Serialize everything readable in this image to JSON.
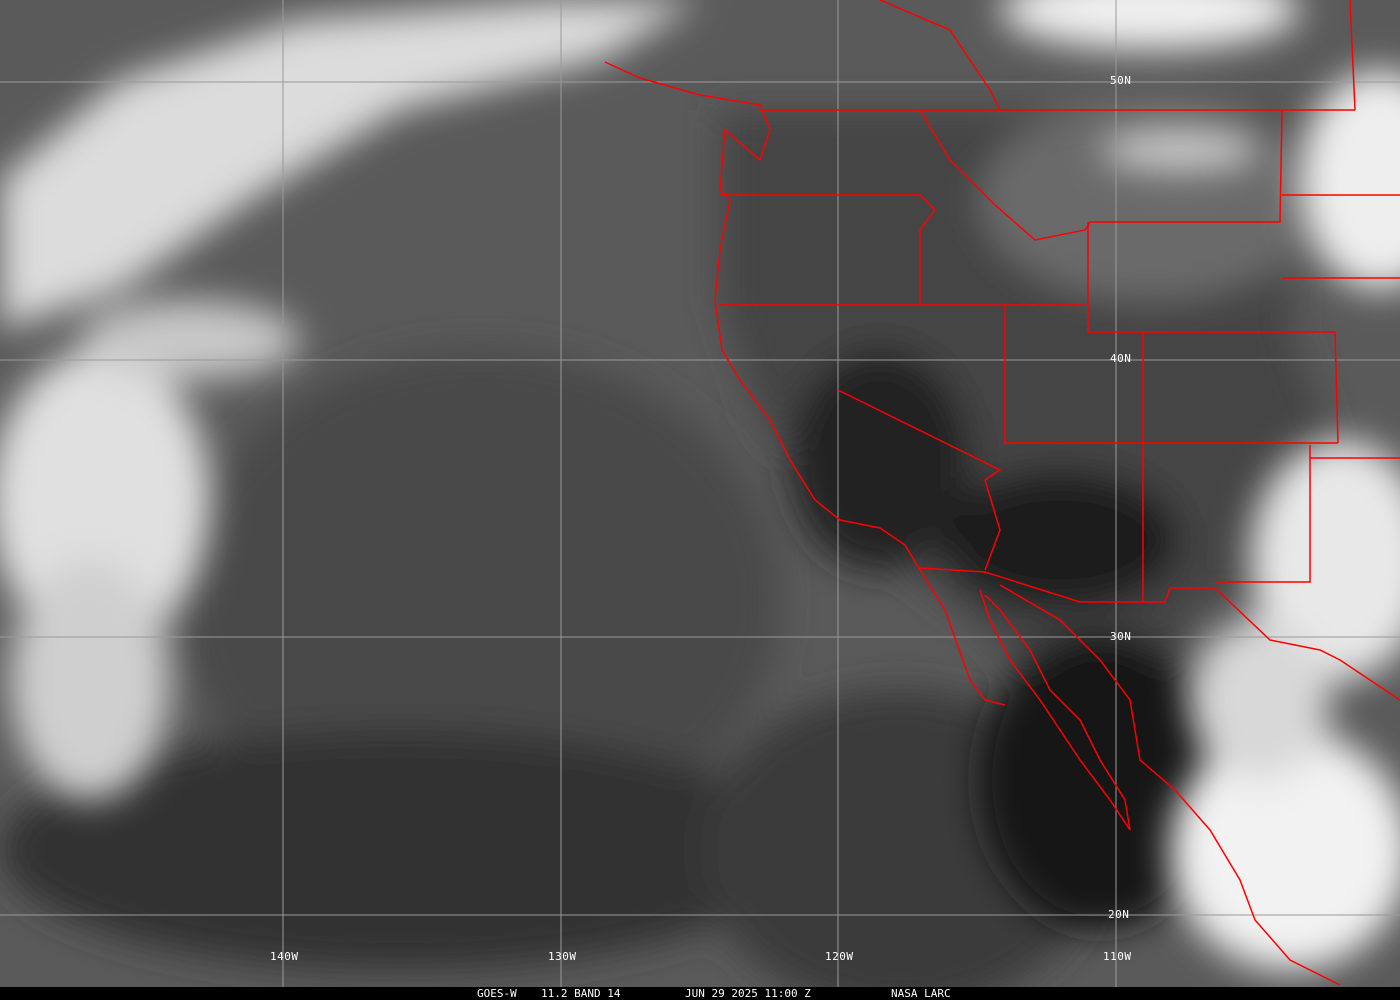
{
  "image": {
    "satellite": "GOES-W",
    "channel": "11.2 BAND 14",
    "datetime": "JUN 29 2025 11:00 Z",
    "credit": "NASA LARC",
    "border_color": "#ff0000",
    "grid_color": "#9a9a9a"
  },
  "grid": {
    "latitudes": [
      "50N",
      "40N",
      "30N",
      "20N"
    ],
    "longitudes": [
      "140W",
      "130W",
      "120W",
      "110W"
    ]
  }
}
